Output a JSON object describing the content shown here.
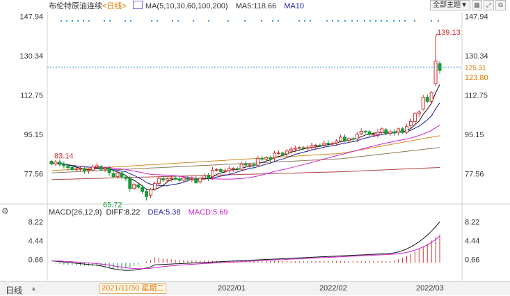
{
  "header": {
    "title": "布伦特原油连续",
    "period": "<日线>",
    "ma_params": "MA(5,10,30,60,100,200)",
    "ma5": "MA5:118.66",
    "ma10": "MA10"
  },
  "toolbar": {
    "theme_select": "全部主题▼",
    "icons": [
      "grid-icon",
      "expand-icon",
      "popout-icon"
    ]
  },
  "price_axis": {
    "labels": [
      "147.94",
      "130.34",
      "112.75",
      "95.15",
      "77.56"
    ],
    "current": "123.80",
    "current_partial": "125.31"
  },
  "macd_axis": {
    "labels": [
      "8.22",
      "4.44",
      "0.66"
    ]
  },
  "macd_header": {
    "params": "MACD(26,12,9)",
    "diff": "DIFF:8.22",
    "dea": "DEA:5.38",
    "macd": "MACD:5.69"
  },
  "annotations": {
    "high": "139.13",
    "low": "65.72",
    "start": "83.14"
  },
  "bottom": {
    "period_button": "日线",
    "selected_date": "2021/11/30 星期二",
    "dates": [
      "2022/01",
      "2022/02",
      "2022/03"
    ]
  },
  "colors": {
    "up": "#d03030",
    "down": "#1a9a3a",
    "ma5": "#111111",
    "ma10": "#1a1aa0",
    "ma30": "#d020d0",
    "ma60": "#d08a20",
    "ma100": "#8a7a5a",
    "ma200": "#b04040",
    "diff": "#111111",
    "dea": "#d020d0",
    "last": "#3399cc"
  },
  "chart_data": {
    "type": "candlestick",
    "series": [
      {
        "name": "close",
        "values": [
          82.0,
          82.9,
          81.8,
          81.2,
          80.4,
          79.5,
          79.8,
          79.9,
          78.8,
          79.3,
          80.6,
          81.2,
          79.6,
          80.1,
          78.1,
          76.3,
          78.0,
          76.3,
          75.5,
          71.0,
          72.9,
          71.6,
          69.7,
          67.4,
          70.7,
          73.3,
          75.6,
          74.8,
          75.4,
          75.8,
          75.2,
          74.7,
          75.9,
          75.2,
          75.4,
          73.6,
          75.6,
          76.9,
          75.6,
          79.2,
          79.5,
          78.6,
          79.0,
          79.8,
          80.0,
          79.6,
          81.9,
          81.5,
          81.7,
          81.4,
          84.5,
          84.1,
          84.8,
          84.2,
          86.8,
          86.9,
          86.2,
          87.8,
          88.6,
          89.0,
          89.3,
          89.0,
          89.3,
          90.2,
          90.4,
          90.3,
          91.3,
          91.1,
          91.2,
          92.3,
          94.0,
          92.4,
          93.3,
          93.2,
          95.2,
          96.6,
          96.4,
          95.2,
          95.2,
          96.2,
          97.7,
          95.6,
          96.3,
          95.8,
          97.7,
          96.1,
          98.7,
          101.0,
          104.5,
          105.2,
          111.8,
          110.0,
          113.9,
          127.98,
          123.8
        ]
      }
    ],
    "highlights": {
      "high": 139.13,
      "low": 65.72,
      "start": 83.14,
      "last": 123.8
    },
    "macd": {
      "diff": 8.22,
      "dea": 5.38,
      "macd": 5.69
    },
    "ylim": [
      65.0,
      150.0
    ],
    "xlabel": "",
    "ylabel": ""
  }
}
